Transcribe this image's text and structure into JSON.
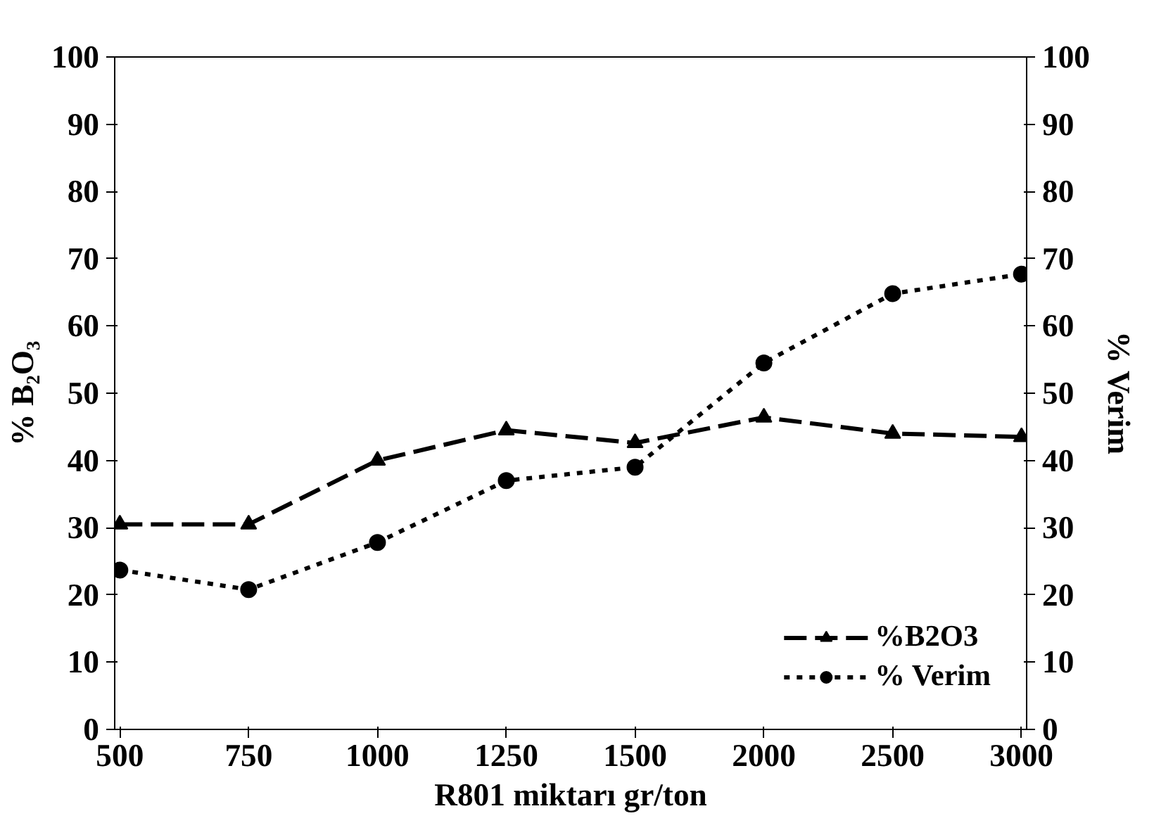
{
  "chart_data": {
    "type": "line",
    "xlabel": "R801 miktarı gr/ton",
    "ylabel": "% B₂O₃",
    "y2label": "% Verim",
    "categories": [
      "500",
      "750",
      "1000",
      "1250",
      "1500",
      "2000",
      "2500",
      "3000"
    ],
    "ylim": [
      0,
      100
    ],
    "yticks": [
      0,
      10,
      20,
      30,
      40,
      50,
      60,
      70,
      80,
      90,
      100
    ],
    "y2lim": [
      0,
      100
    ],
    "y2ticks": [
      0,
      10,
      20,
      30,
      40,
      50,
      60,
      70,
      80,
      90,
      100
    ],
    "grid": false,
    "legend": "bottom right",
    "series": [
      {
        "name": "%B2O3",
        "color": "#000000",
        "marker": "triangle",
        "line_style": "dashed",
        "values": [
          30.5,
          30.5,
          40,
          44.5,
          42.6,
          46.4,
          44,
          43.5
        ]
      },
      {
        "name": "% Verim",
        "color": "#000000",
        "marker": "circle",
        "line_style": "dotted",
        "values": [
          23.7,
          20.8,
          27.8,
          37,
          39,
          54.5,
          64.8,
          67.7
        ]
      }
    ]
  }
}
